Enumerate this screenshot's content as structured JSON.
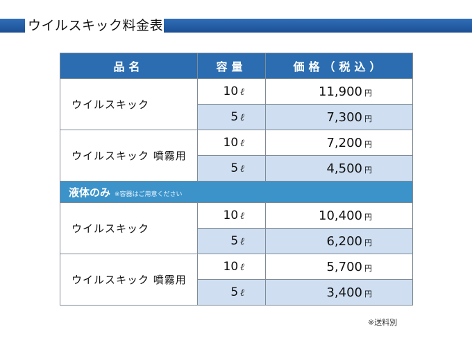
{
  "title": "ウイルスキック料金表",
  "table": {
    "headers": [
      "品名",
      "容量",
      "価格（税込）"
    ],
    "groups_a": [
      {
        "name": "ウイルスキック",
        "rows": [
          {
            "vol": "10",
            "unit": "ℓ",
            "price": "11,900",
            "yen": "円"
          },
          {
            "vol": "5",
            "unit": "ℓ",
            "price": "7,300",
            "yen": "円"
          }
        ]
      },
      {
        "name": "ウイルスキック 噴霧用",
        "rows": [
          {
            "vol": "10",
            "unit": "ℓ",
            "price": "7,200",
            "yen": "円"
          },
          {
            "vol": "5",
            "unit": "ℓ",
            "price": "4,500",
            "yen": "円"
          }
        ]
      }
    ],
    "section": {
      "label": "液体のみ",
      "note": "※容器はご用意ください"
    },
    "groups_b": [
      {
        "name": "ウイルスキック",
        "rows": [
          {
            "vol": "10",
            "unit": "ℓ",
            "price": "10,400",
            "yen": "円"
          },
          {
            "vol": "5",
            "unit": "ℓ",
            "price": "6,200",
            "yen": "円"
          }
        ]
      },
      {
        "name": "ウイルスキック 噴霧用",
        "rows": [
          {
            "vol": "10",
            "unit": "ℓ",
            "price": "5,700",
            "yen": "円"
          },
          {
            "vol": "5",
            "unit": "ℓ",
            "price": "3,400",
            "yen": "円"
          }
        ]
      }
    ]
  },
  "footnote": "※送料別",
  "colors": {
    "header_bg": "#2b6db0",
    "section_bg": "#3c93c9",
    "alt_row_bg": "#cfdff1",
    "title_bar": "#1c4f93"
  }
}
